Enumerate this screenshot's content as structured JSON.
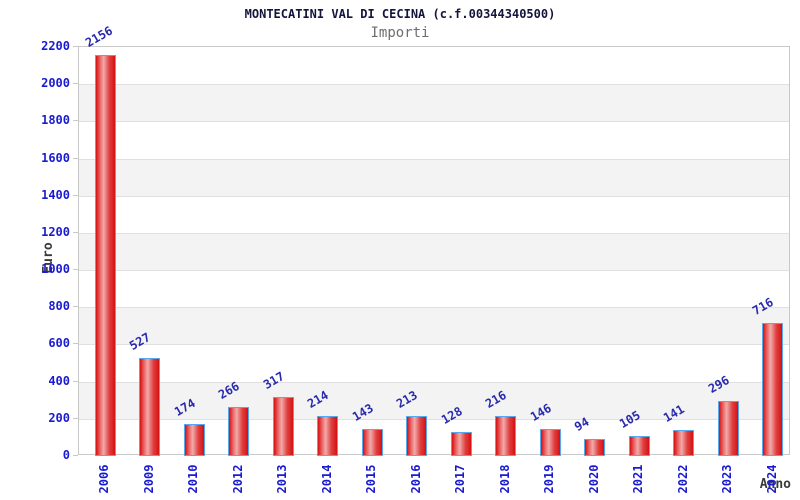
{
  "chart_data": {
    "type": "bar",
    "title": "MONTECATINI VAL DI CECINA (c.f.00344340500)",
    "subtitle": "Importi",
    "xlabel": "Anno",
    "ylabel": "Euro",
    "categories": [
      "2006",
      "2009",
      "2010",
      "2012",
      "2013",
      "2014",
      "2015",
      "2016",
      "2017",
      "2018",
      "2019",
      "2020",
      "2021",
      "2022",
      "2023",
      "2024"
    ],
    "values": [
      2156,
      527,
      174,
      266,
      317,
      214,
      143,
      213,
      128,
      216,
      146,
      94,
      105,
      141,
      296,
      716
    ],
    "value_labels": [
      "2156",
      "527",
      "174",
      "266",
      "317",
      "214",
      "143",
      "213",
      "128",
      "216",
      "146",
      "94",
      "105",
      "141",
      "296",
      "716"
    ],
    "ylim": [
      0,
      2200
    ],
    "ytick_step": 200,
    "yticks": [
      "0",
      "200",
      "400",
      "600",
      "800",
      "1000",
      "1200",
      "1400",
      "1600",
      "1800",
      "2000",
      "2200"
    ],
    "grid": true,
    "legend_position": "none",
    "band_pattern": "alternating white/gray every 200 units, gray from 2000-1800 downward",
    "colors": {
      "background": "#ffffff",
      "title": "#14143c",
      "subtitle": "#6e6e6e",
      "axis_tick_text": "#1a1ad2",
      "value_label_text": "#2a2aae",
      "axis_title_text": "#3a3a3a",
      "bar_edge": "#d41111",
      "bar_mid": "#f2abab",
      "bar_border": "#58a8f0",
      "band_gray": "#f3f3f3",
      "gridline": "#e0e0e0",
      "plot_border": "#c9c9c9"
    }
  }
}
